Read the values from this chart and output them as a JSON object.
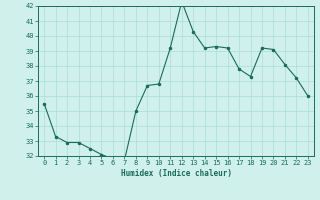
{
  "x": [
    0,
    1,
    2,
    3,
    4,
    5,
    6,
    7,
    8,
    9,
    10,
    11,
    12,
    13,
    14,
    15,
    16,
    17,
    18,
    19,
    20,
    21,
    22,
    23
  ],
  "y": [
    35.5,
    33.3,
    32.9,
    32.9,
    32.5,
    32.1,
    31.8,
    31.7,
    35.0,
    36.7,
    36.8,
    39.2,
    42.3,
    40.3,
    39.2,
    39.3,
    39.2,
    37.8,
    37.3,
    39.2,
    39.1,
    38.1,
    37.2,
    36.0
  ],
  "line_color": "#1a6b5a",
  "marker": "o",
  "marker_size": 1.5,
  "bg_color": "#cff0eb",
  "grid_color": "#aaddd7",
  "xlabel": "Humidex (Indice chaleur)",
  "ylim": [
    32,
    42
  ],
  "xlim": [
    -0.5,
    23.5
  ],
  "yticks": [
    32,
    33,
    34,
    35,
    36,
    37,
    38,
    39,
    40,
    41,
    42
  ],
  "xticks": [
    0,
    1,
    2,
    3,
    4,
    5,
    6,
    7,
    8,
    9,
    10,
    11,
    12,
    13,
    14,
    15,
    16,
    17,
    18,
    19,
    20,
    21,
    22,
    23
  ],
  "label_fontsize": 5.5,
  "tick_fontsize": 5.0
}
